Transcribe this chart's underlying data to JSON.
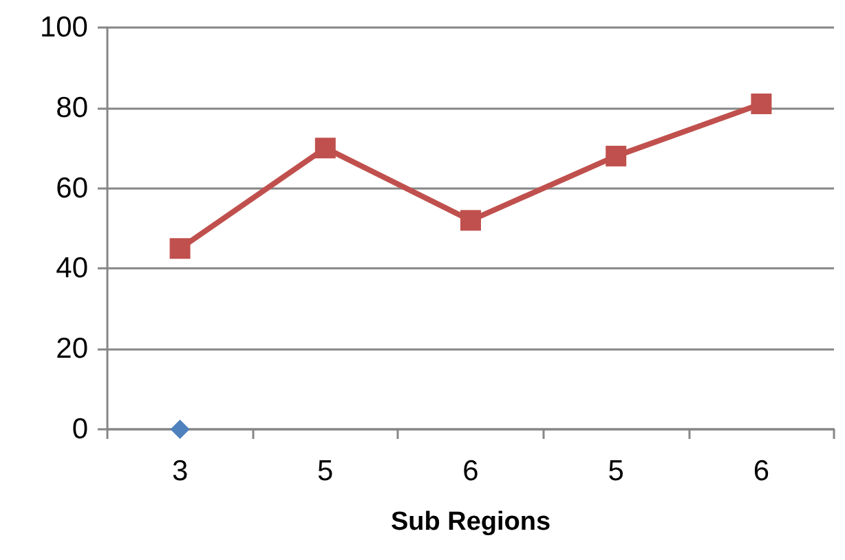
{
  "chart_data": {
    "type": "line",
    "xlabel": "Sub Regions",
    "categories": [
      "3",
      "5",
      "6",
      "5",
      "6"
    ],
    "series": [
      {
        "color": "#4f81bd",
        "marker": "diamond",
        "values": [
          0,
          null,
          null,
          null,
          null
        ]
      },
      {
        "color": "#c0504d",
        "marker": "square",
        "values": [
          45,
          70,
          52,
          68,
          81
        ]
      }
    ],
    "ylim": [
      0,
      100
    ],
    "yticks": [
      0,
      20,
      40,
      60,
      80,
      100
    ],
    "grid": "y"
  }
}
